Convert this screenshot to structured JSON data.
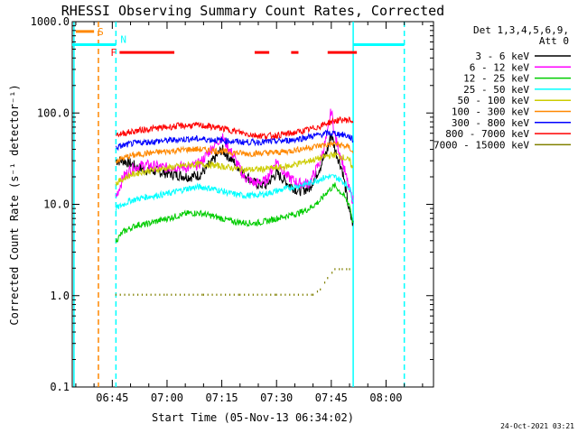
{
  "chart_data": {
    "type": "line",
    "title": "RHESSI Observing Summary Count Rates, Corrected",
    "xlabel": "Start Time (05-Nov-13 06:34:02)",
    "ylabel": "Corrected Count Rate (s⁻¹ detector⁻¹)",
    "yscale": "log",
    "ylim": [
      0.1,
      1000
    ],
    "y_ticks": [
      "0.1",
      "1.0",
      "10.0",
      "100.0",
      "1000.0"
    ],
    "x_ticks": [
      "06:45",
      "07:00",
      "07:15",
      "07:30",
      "07:45",
      "08:00"
    ],
    "x_tick_minutes": [
      45,
      60,
      75,
      90,
      105,
      120
    ],
    "xlim_minutes": [
      34.03,
      133
    ],
    "legend": {
      "placement": "right",
      "header": [
        "Det 1,3,4,5,6,9,",
        "Att 0"
      ]
    },
    "series": [
      {
        "name": "3 - 6 keV",
        "color": "#000000",
        "x": [
          46,
          48,
          50,
          52,
          54,
          57,
          60,
          63,
          66,
          69,
          72,
          75,
          78,
          81,
          84,
          87,
          90,
          93,
          96,
          99,
          102,
          104,
          105,
          106,
          108,
          110,
          111
        ],
        "y": [
          30,
          30,
          28,
          25,
          24,
          23,
          22,
          21,
          20,
          21,
          28,
          40,
          30,
          22,
          17,
          16,
          22,
          17,
          14,
          15,
          26,
          40,
          60,
          40,
          24,
          8,
          6
        ]
      },
      {
        "name": "6 - 12 keV",
        "color": "#ff00ff",
        "x": [
          46,
          48,
          50,
          52,
          54,
          57,
          60,
          63,
          66,
          69,
          72,
          75,
          78,
          81,
          84,
          87,
          90,
          93,
          96,
          99,
          102,
          104,
          105,
          106,
          108,
          110,
          111
        ],
        "y": [
          12,
          20,
          24,
          26,
          27,
          26,
          25,
          26,
          25,
          28,
          40,
          55,
          35,
          20,
          17,
          18,
          30,
          20,
          17,
          17,
          30,
          60,
          110,
          55,
          30,
          14,
          11
        ]
      },
      {
        "name": "12 - 25 keV",
        "color": "#00cc00",
        "x": [
          46,
          48,
          50,
          52,
          54,
          57,
          60,
          63,
          66,
          69,
          72,
          75,
          78,
          81,
          84,
          87,
          90,
          93,
          96,
          99,
          102,
          104,
          106,
          108,
          110,
          111
        ],
        "y": [
          4,
          5,
          5.5,
          6,
          6,
          6.5,
          7,
          7.5,
          8,
          8,
          7.5,
          7,
          6.5,
          6.3,
          6.2,
          6.5,
          7,
          7.5,
          8,
          9,
          11,
          14,
          16,
          13,
          10,
          6
        ]
      },
      {
        "name": "25 - 50 keV",
        "color": "#00ffff",
        "x": [
          46,
          48,
          50,
          52,
          54,
          57,
          60,
          63,
          66,
          69,
          72,
          75,
          78,
          81,
          84,
          87,
          90,
          93,
          96,
          99,
          102,
          104,
          106,
          108,
          110,
          111
        ],
        "y": [
          9,
          10,
          11,
          11.5,
          12,
          12.5,
          13,
          14,
          15,
          15.5,
          15,
          14,
          13,
          12.5,
          12.5,
          13,
          14,
          15,
          16,
          17,
          19,
          20,
          20,
          18,
          15,
          11
        ]
      },
      {
        "name": "50 - 100 keV",
        "color": "#cccc00",
        "x": [
          46,
          48,
          50,
          52,
          54,
          57,
          60,
          63,
          66,
          69,
          72,
          75,
          78,
          81,
          84,
          87,
          90,
          93,
          96,
          99,
          102,
          104,
          106,
          108,
          110,
          111
        ],
        "y": [
          17,
          19,
          21,
          22,
          23,
          24,
          25,
          26,
          27,
          27.5,
          27,
          26,
          25,
          24,
          24,
          24.5,
          25,
          26,
          28,
          30,
          32,
          34,
          35,
          33,
          30,
          24
        ]
      },
      {
        "name": "100 - 300 keV",
        "color": "#ff8800",
        "x": [
          46,
          48,
          50,
          52,
          54,
          57,
          60,
          63,
          66,
          69,
          72,
          75,
          78,
          81,
          84,
          87,
          90,
          93,
          96,
          99,
          102,
          104,
          106,
          108,
          110,
          111
        ],
        "y": [
          30,
          32,
          34,
          35,
          36,
          37,
          38,
          39,
          40,
          40,
          39,
          38,
          37,
          36,
          36,
          36.5,
          37,
          38,
          40,
          42,
          44,
          45,
          46,
          44,
          42,
          36
        ]
      },
      {
        "name": "300 - 800 keV",
        "color": "#0000ff",
        "x": [
          46,
          48,
          50,
          52,
          54,
          57,
          60,
          63,
          66,
          69,
          72,
          75,
          78,
          81,
          84,
          87,
          90,
          93,
          96,
          99,
          102,
          104,
          106,
          108,
          110,
          111
        ],
        "y": [
          42,
          44,
          46,
          47,
          48,
          49,
          50,
          51,
          52,
          52,
          51,
          50,
          49,
          48,
          48,
          48.5,
          49,
          50,
          52,
          55,
          58,
          60,
          60,
          58,
          55,
          50
        ]
      },
      {
        "name": "800 - 7000 keV",
        "color": "#ff0000",
        "x": [
          46,
          48,
          50,
          52,
          54,
          57,
          60,
          63,
          66,
          69,
          72,
          75,
          78,
          81,
          84,
          87,
          90,
          93,
          96,
          99,
          102,
          104,
          106,
          108,
          110,
          111
        ],
        "y": [
          58,
          60,
          62,
          64,
          66,
          68,
          70,
          72,
          73,
          73,
          71,
          68,
          64,
          60,
          57,
          56,
          57,
          59,
          62,
          66,
          72,
          78,
          82,
          84,
          84,
          80
        ]
      },
      {
        "name": "7000 - 15000 keV",
        "color": "#808000",
        "x": [
          46,
          52,
          60,
          70,
          80,
          90,
          100,
          102,
          104,
          106,
          108,
          110,
          111
        ],
        "y": [
          1.05,
          1.05,
          1.05,
          1.05,
          1.05,
          1.05,
          1.05,
          1.2,
          1.6,
          2,
          2,
          2,
          1.1
        ]
      }
    ],
    "flags": [
      {
        "name": "S",
        "color": "#ff8800",
        "segments": [
          [
            35,
            40
          ]
        ],
        "level": 780
      },
      {
        "name": "N",
        "color": "#00ffff",
        "segments": [
          [
            34,
            46
          ],
          [
            111,
            125
          ]
        ],
        "level": 560
      },
      {
        "name": "F",
        "color": "#ff0000",
        "segments": [
          [
            47,
            62
          ],
          [
            84,
            88
          ],
          [
            94,
            96
          ],
          [
            104,
            112
          ]
        ],
        "level": 460
      }
    ],
    "vlines": [
      {
        "x": 34.5,
        "color": "#00ffff",
        "style": "solid"
      },
      {
        "x": 41.2,
        "color": "#ff8800",
        "style": "dashed"
      },
      {
        "x": 46,
        "color": "#00ffff",
        "style": "dashed"
      },
      {
        "x": 111,
        "color": "#00ffff",
        "style": "solid"
      },
      {
        "x": 125,
        "color": "#00ffff",
        "style": "dashed"
      }
    ],
    "grid": false
  },
  "footer": {
    "date": "24-Oct-2021 03:21"
  }
}
